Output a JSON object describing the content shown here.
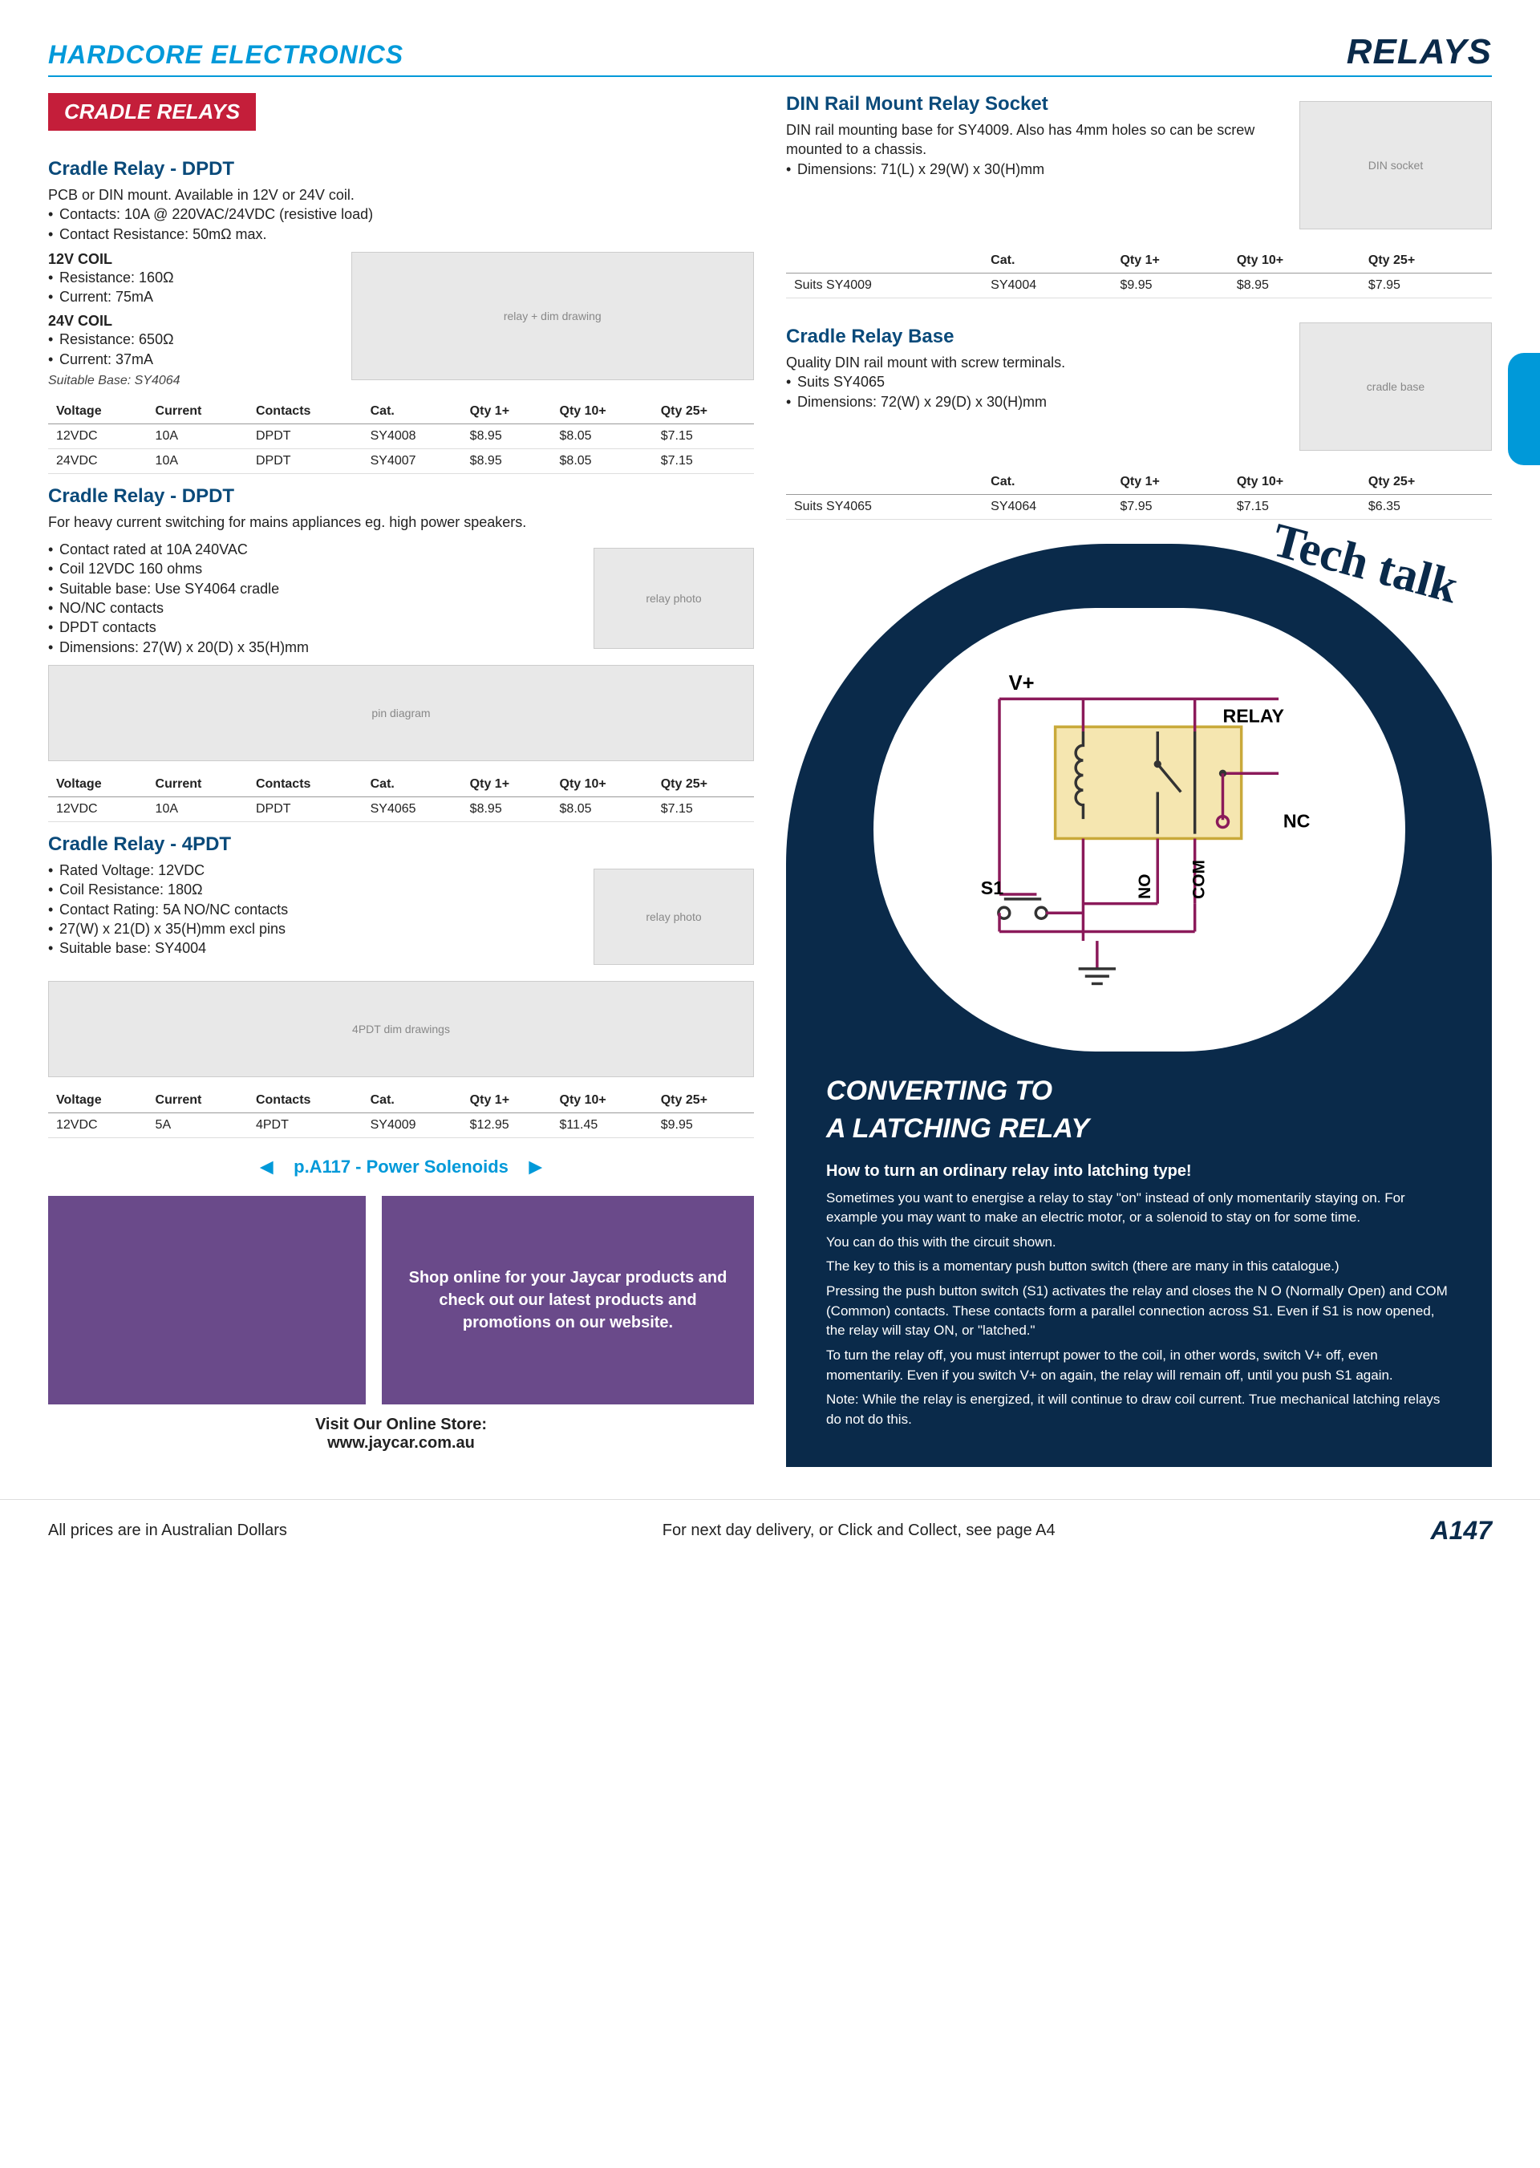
{
  "header": {
    "brand": "HARDCORE ELECTRONICS",
    "category": "RELAYS"
  },
  "section_banner": "CRADLE RELAYS",
  "cradle_dpdt": {
    "title": "Cradle Relay - DPDT",
    "desc": "PCB or DIN mount. Available in 12V or 24V coil.",
    "bullets": [
      "Contacts: 10A @ 220VAC/24VDC (resistive load)",
      "Contact Resistance: 50mΩ max."
    ],
    "coil12_head": "12V COIL",
    "coil12": [
      "Resistance: 160Ω",
      "Current: 75mA"
    ],
    "coil24_head": "24V COIL",
    "coil24": [
      "Resistance: 650Ω",
      "Current: 37mA"
    ],
    "note": "Suitable Base: SY4064",
    "table": {
      "headers": [
        "Voltage",
        "Current",
        "Contacts",
        "Cat.",
        "Qty 1+",
        "Qty 10+",
        "Qty 25+"
      ],
      "rows": [
        [
          "12VDC",
          "10A",
          "DPDT",
          "SY4008",
          "$8.95",
          "$8.05",
          "$7.15"
        ],
        [
          "24VDC",
          "10A",
          "DPDT",
          "SY4007",
          "$8.95",
          "$8.05",
          "$7.15"
        ]
      ]
    }
  },
  "cradle_dpdt2": {
    "title": "Cradle Relay - DPDT",
    "desc": "For heavy current switching for mains appliances eg. high power speakers.",
    "bullets": [
      "Contact rated at 10A 240VAC",
      "Coil 12VDC 160 ohms",
      "Suitable base: Use SY4064 cradle",
      "NO/NC contacts",
      "DPDT contacts",
      "Dimensions: 27(W) x 20(D) x 35(H)mm"
    ],
    "table": {
      "headers": [
        "Voltage",
        "Current",
        "Contacts",
        "Cat.",
        "Qty 1+",
        "Qty 10+",
        "Qty 25+"
      ],
      "rows": [
        [
          "12VDC",
          "10A",
          "DPDT",
          "SY4065",
          "$8.95",
          "$8.05",
          "$7.15"
        ]
      ]
    }
  },
  "cradle_4pdt": {
    "title": "Cradle Relay - 4PDT",
    "bullets": [
      "Rated Voltage: 12VDC",
      "Coil Resistance: 180Ω",
      "Contact Rating: 5A NO/NC contacts",
      "27(W) x 21(D) x 35(H)mm excl pins",
      "Suitable base: SY4004"
    ],
    "table": {
      "headers": [
        "Voltage",
        "Current",
        "Contacts",
        "Cat.",
        "Qty 1+",
        "Qty 10+",
        "Qty 25+"
      ],
      "rows": [
        [
          "12VDC",
          "5A",
          "4PDT",
          "SY4009",
          "$12.95",
          "$11.45",
          "$9.95"
        ]
      ]
    }
  },
  "crossref": {
    "label": "p.A117 - Power Solenoids"
  },
  "promo": {
    "text": "Shop online for your Jaycar products and check out our latest products and promotions on our website."
  },
  "visit": {
    "line1": "Visit Our Online Store:",
    "line2": "www.jaycar.com.au"
  },
  "din_socket": {
    "title": "DIN Rail Mount Relay Socket",
    "desc": "DIN rail mounting base for SY4009. Also has 4mm holes so can be screw mounted to a chassis.",
    "bullets": [
      "Dimensions: 71(L) x 29(W) x 30(H)mm"
    ],
    "table": {
      "headers": [
        "",
        "Cat.",
        "Qty 1+",
        "Qty 10+",
        "Qty 25+"
      ],
      "rows": [
        [
          "Suits SY4009",
          "SY4004",
          "$9.95",
          "$8.95",
          "$7.95"
        ]
      ]
    }
  },
  "cradle_base": {
    "title": "Cradle Relay Base",
    "desc": "Quality DIN rail mount with screw terminals.",
    "bullets": [
      "Suits SY4065",
      "Dimensions: 72(W) x 29(D) x 30(H)mm"
    ],
    "table": {
      "headers": [
        "",
        "Cat.",
        "Qty 1+",
        "Qty 10+",
        "Qty 25+"
      ],
      "rows": [
        [
          "Suits SY4065",
          "SY4064",
          "$7.95",
          "$7.15",
          "$6.35"
        ]
      ]
    }
  },
  "tech": {
    "label": "Tech talk",
    "diagram": {
      "vplus": "V+",
      "relay": "RELAY",
      "s1": "S1",
      "no": "NO",
      "com": "COM",
      "nc": "NC"
    },
    "title1": "CONVERTING TO",
    "title2": "A LATCHING RELAY",
    "sub": "How to turn an ordinary relay into latching type!",
    "body": "Sometimes you want to energise a relay to stay \"on\" instead of only momentarily staying on. For example you may want to make an electric motor, or a solenoid to stay on for some time.\nYou can do this with the circuit shown.\nThe key to this is a momentary push button switch (there are many in this catalogue.)\nPressing the push button switch (S1) activates the relay and closes the N O (Normally Open) and COM (Common) contacts. These contacts form a parallel connection across S1. Even if S1 is now opened, the relay will stay ON, or \"latched.\"\nTo turn the relay off, you must interrupt power to the coil, in other words, switch V+ off, even momentarily. Even if you switch V+ on again, the relay will remain off, until you push S1 again.\nNote: While the relay is energized, it will continue to draw coil current. True mechanical latching relays do not do this."
  },
  "footer": {
    "left": "All prices are in Australian Dollars",
    "center": "For next day delivery, or Click and Collect, see page A4",
    "page": "A147"
  }
}
